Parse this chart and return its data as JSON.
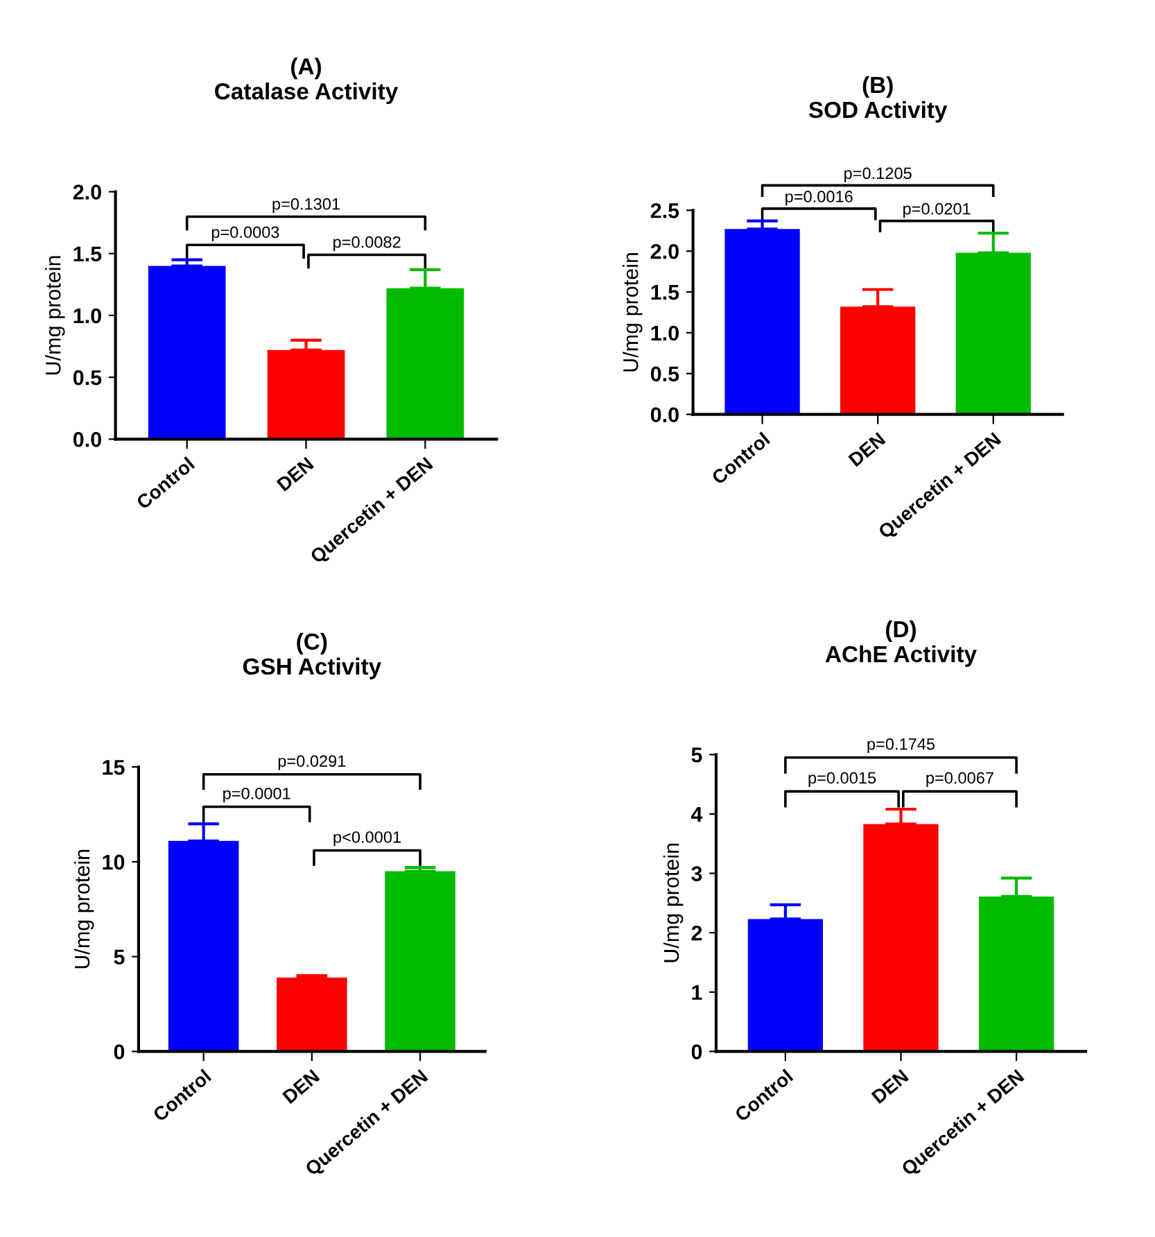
{
  "chart_data": [
    {
      "type": "bar",
      "title": "(A)\nCatalase Activity",
      "ylabel": "U/mg protein",
      "categories": [
        "Control",
        "DEN",
        "Quercetin + DEN"
      ],
      "values": [
        1.4,
        0.72,
        1.22
      ],
      "colors": [
        "#0000ff",
        "#ff0000",
        "#00bb00"
      ],
      "errors": [
        [
          1.4,
          1.45
        ],
        [
          0.72,
          0.8
        ],
        [
          1.22,
          1.37
        ]
      ],
      "ylim": [
        0,
        2.0
      ],
      "yticks": [
        {
          "value": 0,
          "label": "0.0"
        },
        0.5,
        {
          "value": 1,
          "label": "1.0"
        },
        1.5,
        {
          "value": 2,
          "label": "2.0"
        }
      ],
      "grid": false,
      "annotations": [
        "p=0.0003",
        "p=0.0082",
        "p=0.1301"
      ]
    },
    {
      "type": "bar",
      "title": "(B)\nSOD Activity",
      "ylabel": "U/mg protein",
      "categories": [
        "Control",
        "DEN",
        "Quercetin + DEN"
      ],
      "values": [
        2.27,
        1.32,
        1.98
      ],
      "colors": [
        "#0000ff",
        "#ff0000",
        "#00bb00"
      ],
      "errors": [
        [
          2.27,
          2.37
        ],
        [
          1.32,
          1.53
        ],
        [
          1.98,
          2.22
        ]
      ],
      "ylim": [
        0,
        2.5
      ],
      "yticks": [
        {
          "value": 0,
          "label": "0.0"
        },
        0.5,
        {
          "value": 1,
          "label": "1.0"
        },
        1.5,
        {
          "value": 2,
          "label": "2.0"
        },
        2.5
      ],
      "grid": false,
      "annotations": [
        "p=0.0016",
        "p=0.0201",
        "p=0.1205"
      ]
    },
    {
      "type": "bar",
      "title": "(C)\nGSH Activity",
      "ylabel": "U/mg protein",
      "categories": [
        "Control",
        "DEN",
        "Quercetin + DEN"
      ],
      "values": [
        11.1,
        3.9,
        9.5
      ],
      "colors": [
        "#0000ff",
        "#ff0000",
        "#00bb00"
      ],
      "errors": [
        [
          11.1,
          12.0
        ],
        [
          3.9,
          4.0
        ],
        [
          9.5,
          9.7
        ]
      ],
      "ylim": [
        0,
        15
      ],
      "yticks": [
        0,
        5,
        10,
        15
      ],
      "grid": false,
      "annotations": [
        "p=0.0001",
        "p<0.0001",
        "p=0.0291"
      ]
    },
    {
      "type": "bar",
      "title": "(D)\nAChE Activity",
      "ylabel": "U/mg protein",
      "categories": [
        "Control",
        "DEN",
        "Quercetin + DEN"
      ],
      "values": [
        2.23,
        3.83,
        2.61
      ],
      "colors": [
        "#0000ff",
        "#ff0000",
        "#00bb00"
      ],
      "errors": [
        [
          2.23,
          2.47
        ],
        [
          3.83,
          4.08
        ],
        [
          2.61,
          2.92
        ]
      ],
      "ylim": [
        0,
        5
      ],
      "yticks": [
        0,
        1,
        2,
        3,
        4,
        5
      ],
      "grid": false,
      "annotations": [
        "p=0.0015",
        "p=0.0067",
        "p=0.1745"
      ]
    }
  ]
}
